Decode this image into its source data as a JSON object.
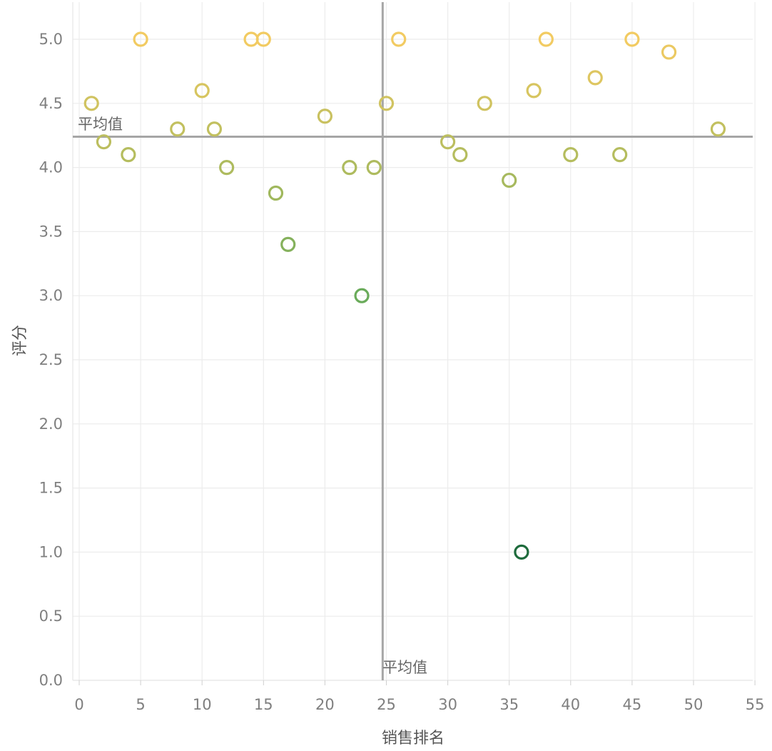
{
  "chart_data": {
    "type": "scatter",
    "xlabel": "销售排名",
    "ylabel": "评分",
    "xlim": [
      0,
      55
    ],
    "ylim": [
      0,
      5
    ],
    "x_ticks": [
      "0",
      "5",
      "10",
      "15",
      "20",
      "25",
      "30",
      "35",
      "40",
      "45",
      "50",
      "55"
    ],
    "y_ticks": [
      "0.0",
      "0.5",
      "1.0",
      "1.5",
      "2.0",
      "2.5",
      "3.0",
      "3.5",
      "4.0",
      "4.5",
      "5.0"
    ],
    "grid": true,
    "reference_lines": {
      "x_mean": 24.7,
      "y_mean": 4.24,
      "x_label": "平均值",
      "y_label": "平均值"
    },
    "color_scale": {
      "low": "#1e6b3c",
      "mid": "#6aab5a",
      "high": "#f2cb62"
    },
    "points": [
      {
        "x": 1,
        "y": 4.5
      },
      {
        "x": 2,
        "y": 4.2
      },
      {
        "x": 4,
        "y": 4.1
      },
      {
        "x": 5,
        "y": 5.0
      },
      {
        "x": 8,
        "y": 4.3
      },
      {
        "x": 10,
        "y": 4.6
      },
      {
        "x": 11,
        "y": 4.3
      },
      {
        "x": 12,
        "y": 4.0
      },
      {
        "x": 14,
        "y": 5.0
      },
      {
        "x": 15,
        "y": 5.0
      },
      {
        "x": 16,
        "y": 3.8
      },
      {
        "x": 17,
        "y": 3.4
      },
      {
        "x": 20,
        "y": 4.4
      },
      {
        "x": 22,
        "y": 4.0
      },
      {
        "x": 23,
        "y": 3.0
      },
      {
        "x": 24,
        "y": 4.0
      },
      {
        "x": 25,
        "y": 4.5
      },
      {
        "x": 26,
        "y": 5.0
      },
      {
        "x": 30,
        "y": 4.2
      },
      {
        "x": 31,
        "y": 4.1
      },
      {
        "x": 33,
        "y": 4.5
      },
      {
        "x": 35,
        "y": 3.9
      },
      {
        "x": 36,
        "y": 1.0
      },
      {
        "x": 37,
        "y": 4.6
      },
      {
        "x": 38,
        "y": 5.0
      },
      {
        "x": 40,
        "y": 4.1
      },
      {
        "x": 42,
        "y": 4.7
      },
      {
        "x": 44,
        "y": 4.1
      },
      {
        "x": 45,
        "y": 5.0
      },
      {
        "x": 48,
        "y": 4.9
      },
      {
        "x": 52,
        "y": 4.3
      }
    ]
  }
}
